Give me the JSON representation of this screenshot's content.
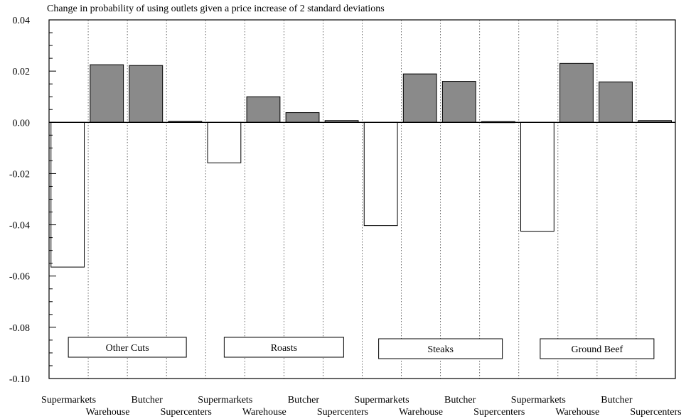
{
  "chart_data": {
    "type": "bar",
    "title": "Change in probability of using outlets given a price increase of 2 standard deviations",
    "xlabel": "",
    "ylabel": "",
    "ylim": [
      -0.1,
      0.04
    ],
    "yticks": [
      0.04,
      0.02,
      0.0,
      -0.02,
      -0.04,
      -0.06,
      -0.08,
      -0.1
    ],
    "ytick_labels": [
      "0.04",
      "0.02",
      "0.00",
      "-0.02",
      "-0.04",
      "-0.06",
      "-0.08",
      "-0.10"
    ],
    "grid": false,
    "outlets": [
      "Supermarkets",
      "Warehouse",
      "Butcher",
      "Supercenters"
    ],
    "negative_color": "#ffffff",
    "positive_color": "#8a8a8a",
    "groups": [
      {
        "name": "Other Cuts",
        "values": [
          -0.0565,
          0.0225,
          0.0222,
          0.0004
        ]
      },
      {
        "name": "Roasts",
        "values": [
          -0.0158,
          0.01,
          0.0038,
          0.0007
        ]
      },
      {
        "name": "Steaks",
        "values": [
          -0.0403,
          0.0189,
          0.016,
          0.0003
        ]
      },
      {
        "name": "Ground Beef",
        "values": [
          -0.0425,
          0.023,
          0.0158,
          0.0007
        ]
      }
    ]
  }
}
